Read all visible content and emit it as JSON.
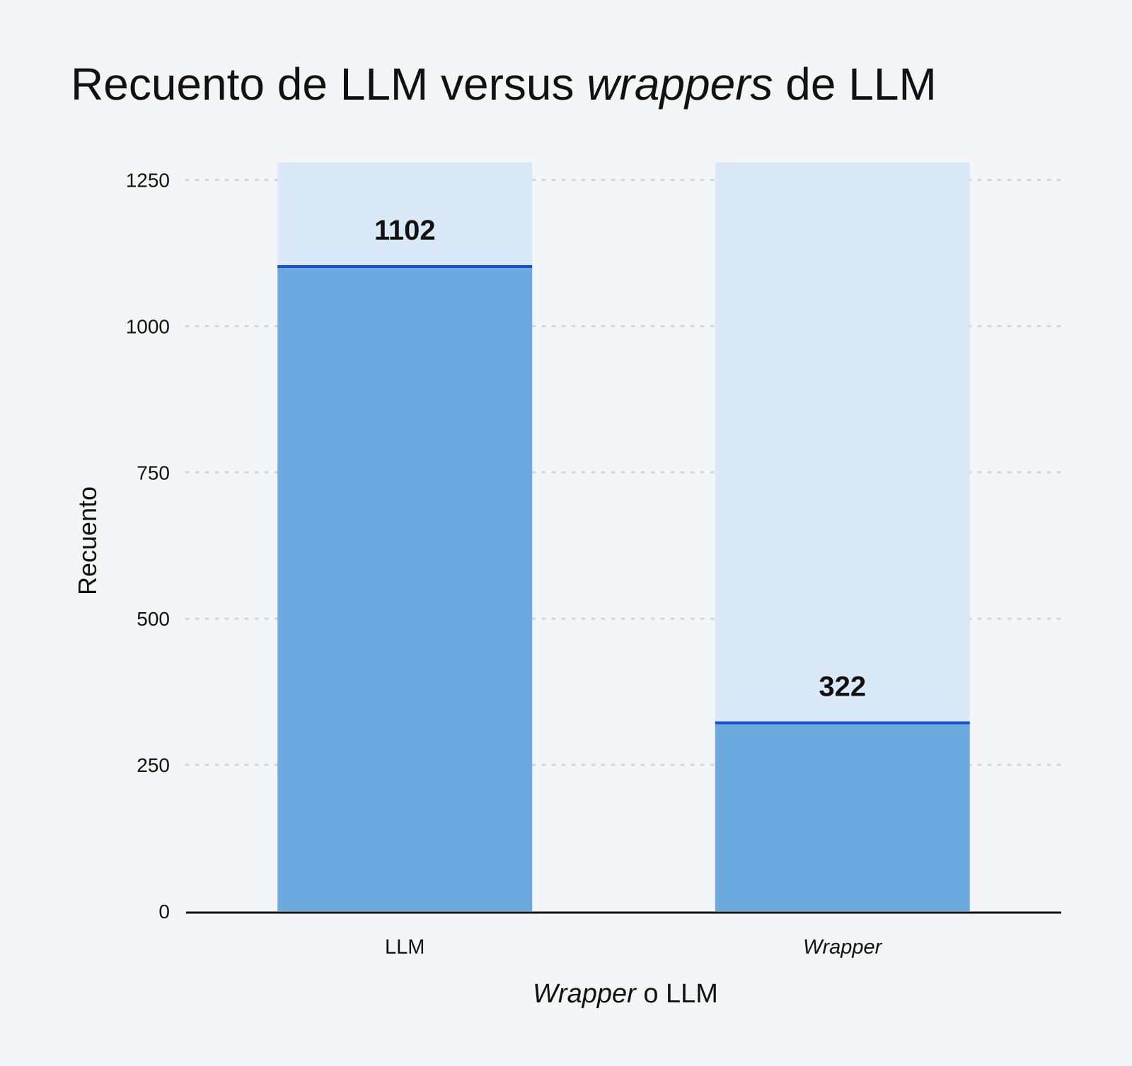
{
  "chart_data": {
    "type": "bar",
    "title": {
      "pre": "Recuento de LLM versus ",
      "em": "wrappers",
      "post": " de LLM"
    },
    "categories": [
      "LLM",
      "Wrapper"
    ],
    "category_italic": [
      false,
      true
    ],
    "values": [
      1102,
      322
    ],
    "value_labels": [
      "1102",
      "322"
    ],
    "ylabel": "Recuento",
    "xlabel": {
      "em": "Wrapper",
      "post": " o LLM"
    },
    "yticks": [
      0,
      250,
      500,
      750,
      1000,
      1250
    ],
    "ylim": [
      0,
      1280
    ],
    "grid": "horizontal dotted",
    "colors": {
      "background": "#f4f5f7",
      "bar_fill": "#6ca9df",
      "bar_track": "#dae9f8",
      "bar_top_line": "#1f4fd6",
      "grid": "#d3d5d9",
      "axis": "#111111",
      "text": "#111111"
    }
  }
}
